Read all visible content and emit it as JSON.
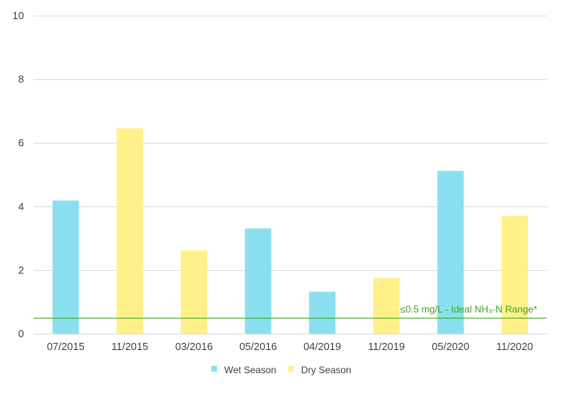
{
  "chart_data": {
    "type": "bar",
    "categories": [
      "07/2015",
      "11/2015",
      "03/2016",
      "05/2016",
      "04/2019",
      "11/2019",
      "05/2020",
      "11/2020"
    ],
    "values": [
      4.2,
      6.47,
      2.63,
      3.32,
      1.33,
      1.76,
      5.13,
      3.72
    ],
    "seasons": [
      "Wet Season",
      "Dry Season",
      "Dry Season",
      "Wet Season",
      "Wet Season",
      "Dry Season",
      "Wet Season",
      "Dry Season"
    ],
    "series": [
      {
        "name": "Wet Season",
        "color": "#8ae0ee"
      },
      {
        "name": "Dry Season",
        "color": "#fff08a"
      }
    ],
    "title": "",
    "xlabel": "",
    "ylabel": "",
    "ylim": [
      0,
      10
    ],
    "yticks": [
      "0",
      "2",
      "4",
      "6",
      "8",
      "10"
    ],
    "grid": true,
    "legend_position": "bottom",
    "reference_line": {
      "value": 0.5,
      "label": "≤0.5 mg/L - Ideal NH₃-N Range*",
      "color": "#3aa31a"
    }
  }
}
